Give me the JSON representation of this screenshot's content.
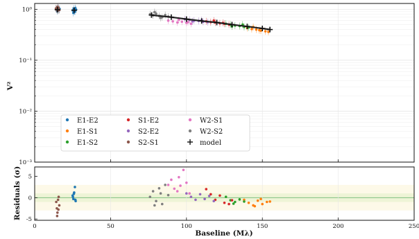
{
  "chart_data": [
    {
      "type": "scatter",
      "panel": "visibility",
      "ylabel": "V²",
      "yscale": "log",
      "ylim": [
        0.001,
        1.3
      ],
      "xlim": [
        0,
        250
      ],
      "grid": true,
      "legend_placement": "lower-left",
      "y_ticks": [
        {
          "value": 1,
          "label": "10⁰"
        },
        {
          "value": 0.1,
          "label": "10⁻¹"
        },
        {
          "value": 0.01,
          "label": "10⁻²"
        },
        {
          "value": 0.001,
          "label": "10⁻³"
        }
      ],
      "series": [
        {
          "name": "E1-E2",
          "color": "#1f77b4",
          "x": [
            14.2,
            14.8,
            15.3,
            15.9,
            16.4,
            25.1,
            25.7,
            26.2,
            26.8,
            27.3,
            25.5,
            26.5
          ],
          "y": [
            1.0,
            0.93,
            1.06,
            0.97,
            1.02,
            0.95,
            1.03,
            0.92,
            1.05,
            0.98,
            0.85,
            0.9
          ]
        },
        {
          "name": "E1-S1",
          "color": "#ff7f0e",
          "x": [
            140,
            143,
            146,
            149,
            152,
            154,
            144,
            148
          ],
          "y": [
            0.43,
            0.41,
            0.4,
            0.38,
            0.37,
            0.36,
            0.45,
            0.39
          ]
        },
        {
          "name": "E1-S2",
          "color": "#2ca02c",
          "x": [
            126,
            129,
            132,
            135,
            138,
            141,
            130,
            137
          ],
          "y": [
            0.52,
            0.5,
            0.48,
            0.47,
            0.45,
            0.44,
            0.46,
            0.5
          ]
        },
        {
          "name": "S1-E2",
          "color": "#d62728",
          "x": [
            113,
            116,
            119,
            122,
            125,
            128,
            118,
            124
          ],
          "y": [
            0.58,
            0.56,
            0.55,
            0.53,
            0.52,
            0.5,
            0.6,
            0.54
          ]
        },
        {
          "name": "S2-E2",
          "color": "#9467bd",
          "x": [
            99,
            102,
            105,
            108,
            111,
            114,
            104,
            110
          ],
          "y": [
            0.64,
            0.62,
            0.6,
            0.59,
            0.57,
            0.56,
            0.58,
            0.61
          ]
        },
        {
          "name": "S2-S1",
          "color": "#8c564b",
          "x": [
            14.0,
            14.6,
            15.2,
            15.7,
            16.3,
            15.0
          ],
          "y": [
            1.04,
            0.99,
            0.94,
            1.07,
            0.97,
            1.12
          ]
        },
        {
          "name": "W2-S1",
          "color": "#e377c2",
          "x": [
            88,
            91,
            94,
            97,
            100,
            103,
            95,
            101
          ],
          "y": [
            0.6,
            0.58,
            0.55,
            0.57,
            0.54,
            0.52,
            0.62,
            0.56
          ]
        },
        {
          "name": "W2-S2",
          "color": "#7f7f7f",
          "x": [
            76,
            78,
            80,
            82,
            84,
            86,
            88,
            79,
            83
          ],
          "y": [
            0.8,
            0.76,
            0.82,
            0.74,
            0.7,
            0.77,
            0.72,
            0.88,
            0.68
          ]
        }
      ],
      "model": {
        "name": "model",
        "x": [
          15,
          26,
          77,
          90,
          100,
          110,
          120,
          130,
          140,
          150,
          155
        ],
        "y": [
          0.98,
          0.96,
          0.77,
          0.7,
          0.64,
          0.59,
          0.55,
          0.5,
          0.46,
          0.42,
          0.4
        ]
      }
    },
    {
      "type": "scatter",
      "panel": "residuals",
      "xlabel": "Baseline (Mλ)",
      "ylabel": "Residuals (σ)",
      "ylim": [
        -5.3,
        7.2
      ],
      "xlim": [
        0,
        250
      ],
      "x_ticks": [
        0,
        50,
        100,
        150,
        200,
        250
      ],
      "y_ticks": [
        -5,
        0,
        5
      ],
      "band_1sigma": 1,
      "band_3sigma": 3,
      "series": [
        {
          "name": "E1-E2",
          "color": "#1f77b4",
          "x": [
            25,
            25.5,
            26,
            26.5,
            27,
            25.2,
            26.8,
            25.8
          ],
          "y": [
            0.5,
            -0.3,
            1.2,
            2.5,
            -0.8,
            0.2,
            -0.5,
            0.9
          ]
        },
        {
          "name": "E1-S1",
          "color": "#ff7f0e",
          "x": [
            138,
            141,
            144,
            147,
            150,
            153,
            155,
            145,
            149
          ],
          "y": [
            -0.5,
            -1.2,
            -1.8,
            -0.7,
            -1.5,
            -1.0,
            -0.9,
            -2.0,
            -0.3
          ]
        },
        {
          "name": "E1-S2",
          "color": "#2ca02c",
          "x": [
            126,
            129,
            132,
            135,
            138,
            131
          ],
          "y": [
            0.2,
            -0.6,
            -1.0,
            -0.4,
            -0.9,
            -1.4
          ]
        },
        {
          "name": "S1-E2",
          "color": "#d62728",
          "x": [
            113,
            116,
            119,
            122,
            125,
            128,
            130
          ],
          "y": [
            2.0,
            0.8,
            -0.5,
            0.5,
            -1.2,
            -1.5,
            -0.6
          ]
        },
        {
          "name": "S2-E2",
          "color": "#9467bd",
          "x": [
            100,
            103,
            106,
            109,
            112,
            115,
            118
          ],
          "y": [
            1.0,
            0.2,
            -0.5,
            0.8,
            -0.3,
            0.4,
            -0.8
          ]
        },
        {
          "name": "S2-S1",
          "color": "#8c564b",
          "x": [
            14.2,
            14.6,
            15.0,
            15.4,
            15.8,
            16.2,
            14.8,
            15.6
          ],
          "y": [
            -1.0,
            -2.5,
            -3.5,
            -0.5,
            0.2,
            -1.8,
            -4.3,
            -2.8
          ]
        },
        {
          "name": "W2-S1",
          "color": "#e377c2",
          "x": [
            88,
            90,
            92,
            94,
            96,
            98,
            100,
            102,
            95
          ],
          "y": [
            3.0,
            4.2,
            2.1,
            1.5,
            2.8,
            6.5,
            3.5,
            1.0,
            4.8
          ]
        },
        {
          "name": "W2-S2",
          "color": "#7f7f7f",
          "x": [
            76,
            78,
            80,
            82,
            84,
            86,
            88,
            79,
            83
          ],
          "y": [
            0.2,
            1.5,
            -0.8,
            2.2,
            -1.5,
            3.0,
            0.6,
            -1.8,
            1.0
          ]
        }
      ]
    }
  ]
}
